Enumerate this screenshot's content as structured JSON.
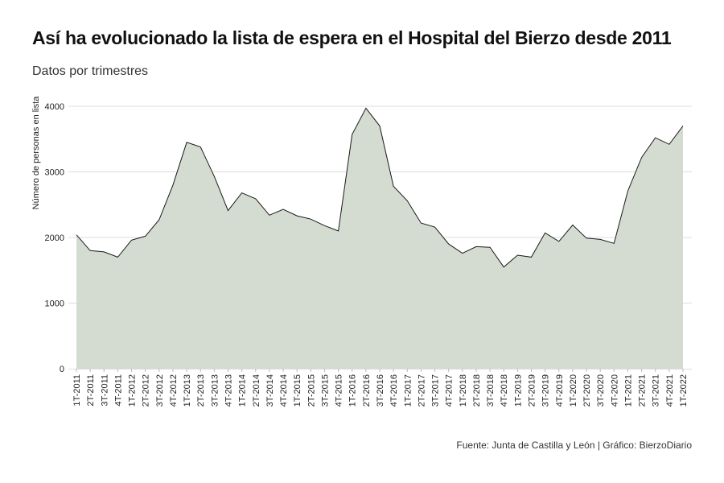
{
  "chart_data": {
    "type": "area",
    "title": "Así ha evolucionado la lista de espera en el Hospital del Bierzo desde 2011",
    "subtitle": "Datos por trimestres",
    "ylabel": "Número de personas en lista",
    "xlabel": "",
    "source": "Fuente: Junta de Castilla y León | Gráfico: BierzoDiario",
    "ylim": [
      0,
      4000
    ],
    "yticks": [
      0,
      1000,
      2000,
      3000,
      4000
    ],
    "grid": true,
    "colors": {
      "fill": "#d4dcd2",
      "line": "#1a1a1a",
      "grid": "#dcdcdc"
    },
    "categories": [
      "1T-2011",
      "2T-2011",
      "3T-2011",
      "4T-2011",
      "1T-2012",
      "2T-2012",
      "3T-2012",
      "4T-2012",
      "1T-2013",
      "2T-2013",
      "3T-2013",
      "4T-2013",
      "1T-2014",
      "2T-2014",
      "3T-2014",
      "4T-2014",
      "1T-2015",
      "2T-2015",
      "3T-2015",
      "4T-2015",
      "1T-2016",
      "2T-2016",
      "3T-2016",
      "4T-2016",
      "1T-2017",
      "2T-2017",
      "3T-2017",
      "4T-2017",
      "1T-2018",
      "2T-2018",
      "3T-2018",
      "4T-2018",
      "1T-2019",
      "2T-2019",
      "3T-2019",
      "4T-2019",
      "1T-2020",
      "2T-2020",
      "3T-2020",
      "4T-2020",
      "1T-2021",
      "2T-2021",
      "3T-2021",
      "4T-2021",
      "1T-2022"
    ],
    "values": [
      2040,
      1800,
      1780,
      1700,
      1960,
      2020,
      2270,
      2800,
      3450,
      3380,
      2930,
      2410,
      2680,
      2590,
      2340,
      2430,
      2330,
      2280,
      2180,
      2100,
      3570,
      3970,
      3700,
      2780,
      2560,
      2220,
      2160,
      1900,
      1760,
      1860,
      1850,
      1550,
      1730,
      1700,
      2070,
      1940,
      2190,
      1990,
      1970,
      1910,
      2710,
      3220,
      3520,
      3420,
      3700
    ]
  }
}
